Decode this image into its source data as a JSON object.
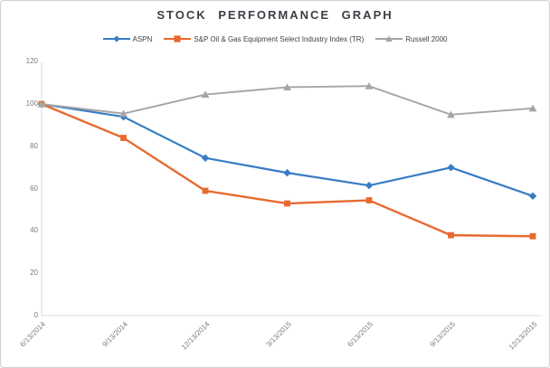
{
  "chart_data": {
    "type": "line",
    "title": "STOCK PERFORMANCE GRAPH",
    "categories": [
      "6/13/2014",
      "9/13/2014",
      "12/13/2014",
      "3/13/2015",
      "6/13/2015",
      "9/13/2015",
      "12/13/2015"
    ],
    "series": [
      {
        "name": "ASPN",
        "marker": "diamond",
        "color": "#387CC4",
        "values": [
          100,
          94,
          74.5,
          67.5,
          61.5,
          70,
          56.5
        ]
      },
      {
        "name": "S&P Oil & Gas Equipment Select Industry Index (TR)",
        "marker": "square",
        "color": "#E8692F",
        "values": [
          100,
          84,
          59,
          53,
          54.5,
          38,
          37.5
        ]
      },
      {
        "name": "Russell 2000",
        "marker": "triangle",
        "color": "#A5A5A5",
        "values": [
          100,
          95.5,
          104.5,
          108,
          108.5,
          95,
          98
        ]
      }
    ],
    "y_ticks": [
      0,
      20,
      40,
      60,
      80,
      100,
      120
    ],
    "ylim": [
      0,
      120
    ],
    "grid": false,
    "legend_position": "top-center",
    "x_axis_label_rotation_deg": 45
  }
}
